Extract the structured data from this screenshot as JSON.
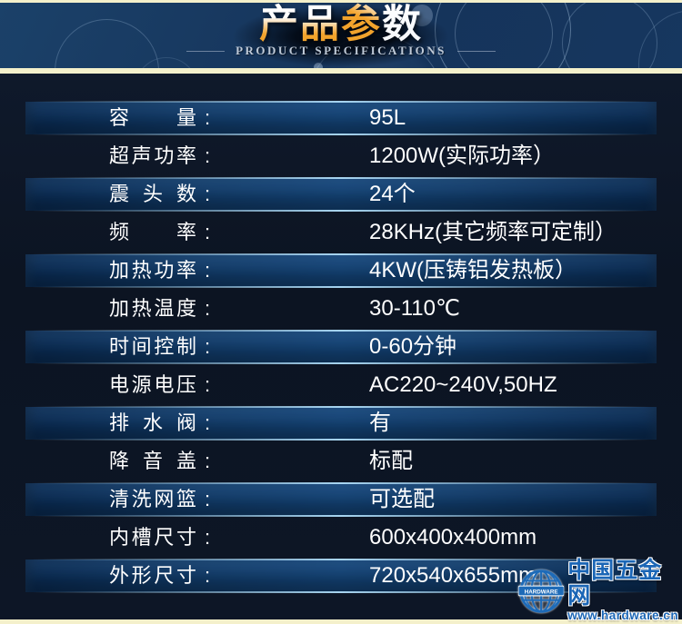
{
  "header": {
    "title": "产品参数",
    "subtitle": "PRODUCT SPECIFICATIONS"
  },
  "ui": {
    "label_separator": ":"
  },
  "specs": [
    {
      "label": "容量",
      "value": "95L"
    },
    {
      "label": "超声功率",
      "value": "1200W(实际功率）"
    },
    {
      "label": "震头数",
      "value": "24个"
    },
    {
      "label": "频率",
      "value": "28KHz(其它频率可定制）"
    },
    {
      "label": "加热功率",
      "value": "4KW(压铸铝发热板）"
    },
    {
      "label": "加热温度",
      "value": "30-110℃"
    },
    {
      "label": "时间控制",
      "value": "0-60分钟"
    },
    {
      "label": "电源电压",
      "value": "AC220~240V,50HZ"
    },
    {
      "label": "排水阀",
      "value": "有"
    },
    {
      "label": "降音盖",
      "value": "标配"
    },
    {
      "label": "清洗网篮",
      "value": "可选配"
    },
    {
      "label": "内槽尺寸",
      "value": "600x400x400mm"
    },
    {
      "label": "外形尺寸",
      "value": "720x540x655mm"
    }
  ],
  "watermark": {
    "icon": "globe-icon",
    "globe_label": "HARDWARE",
    "site_name": "中国五金网",
    "site_url": "www.hardware.cn"
  },
  "colors": {
    "accent_orange": "#f2a32c",
    "cream_border": "#f4f0cb",
    "highlight_bar_blue": "#14457a",
    "glow_line": "#afdefa",
    "body_background": "#0c1422",
    "banner_background": "#15335a",
    "logo_blue": "#1b66b6"
  }
}
